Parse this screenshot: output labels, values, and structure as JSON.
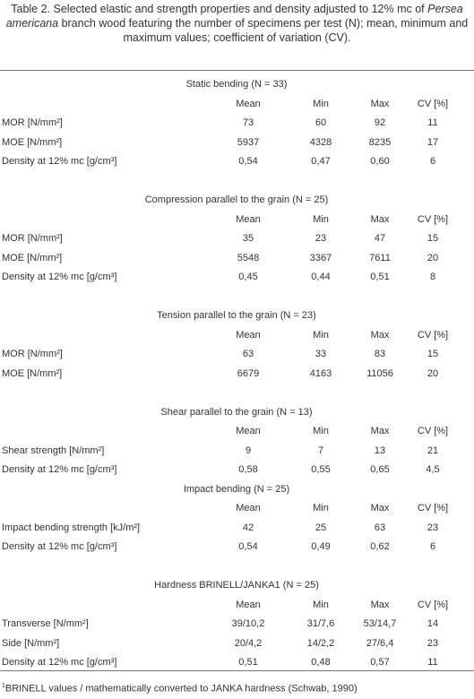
{
  "caption": {
    "before": "Table 2. Selected elastic and strength properties and density adjusted to 12% mc of ",
    "italic": "Persea americana",
    "after": " branch wood featuring the number of specimens per test (N); mean, minimum and maximum values; coefficient of variation (CV)."
  },
  "table": {
    "columns": [
      "Mean",
      "Min",
      "Max",
      "CV [%]"
    ],
    "sections": [
      {
        "title": "Static bending (N = 33)",
        "rows": [
          [
            "MOR [N/mm²]",
            "73",
            "60",
            "92",
            "11"
          ],
          [
            "MOE [N/mm²]",
            "5937",
            "4328",
            "8235",
            "17"
          ],
          [
            "Density at 12% mc [g/cm³]",
            "0,54",
            "0,47",
            "0,60",
            "6"
          ]
        ]
      },
      {
        "title": "Compression parallel to the grain (N = 25)",
        "rows": [
          [
            "MOR [N/mm²]",
            "35",
            "23",
            "47",
            "15"
          ],
          [
            "MOE [N/mm²]",
            "5548",
            "3367",
            "7611",
            "20"
          ],
          [
            "Density at 12% mc [g/cm³]",
            "0,45",
            "0,44",
            "0,51",
            "8"
          ]
        ]
      },
      {
        "title": "Tension parallel to the grain (N = 23)",
        "rows": [
          [
            "MOR [N/mm²]",
            "63",
            "33",
            "83",
            "15"
          ],
          [
            "MOE [N/mm²]",
            "6679",
            "4163",
            "11056",
            "20"
          ]
        ]
      },
      {
        "title": "Shear parallel to the grain (N = 13)",
        "rows": [
          [
            "Shear strength [N/mm²]",
            "9",
            "7",
            "13",
            "21"
          ],
          [
            "Density at 12% mc [g/cm³]",
            "0,58",
            "0,55",
            "0,65",
            "4,5"
          ]
        ]
      },
      {
        "title": "Impact bending (N = 25)",
        "rows": [
          [
            "Impact bending strength [kJ/m²]",
            "42",
            "25",
            "63",
            "23"
          ],
          [
            "Density at 12% mc [g/cm³]",
            "0,54",
            "0,49",
            "0,62",
            "6"
          ]
        ]
      },
      {
        "title": "Hardness BRINELL/JANKA1 (N = 25)",
        "rows": [
          [
            "Transverse [N/mm²]",
            "39/10,2",
            "31/7,6",
            "53/14,7",
            "14"
          ],
          [
            "Side [N/mm²]",
            "20/4,2",
            "14/2,2",
            "27/6,4",
            "23"
          ],
          [
            "Density at 12% mc [g/cm³]",
            "0,51",
            "0,48",
            "0,57",
            "11"
          ]
        ]
      }
    ]
  },
  "footnote": {
    "marker": "1",
    "text": "BRINELL values / mathematically converted to JANKA hardness (Schwab, 1990)"
  }
}
